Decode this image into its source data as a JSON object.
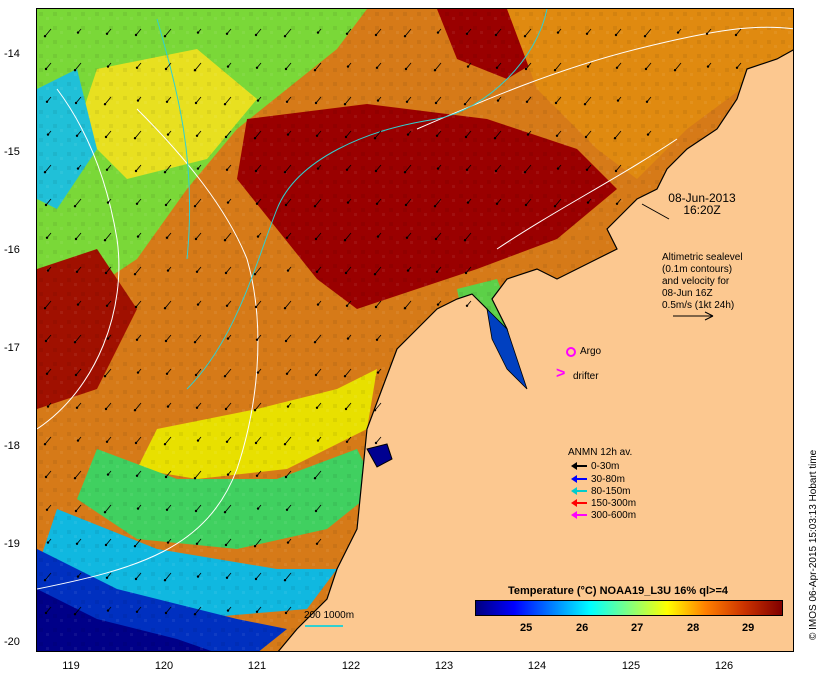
{
  "map": {
    "x_ticks": [
      "119",
      "120",
      "121",
      "122",
      "123",
      "124",
      "125",
      "126"
    ],
    "y_ticks": [
      "-14",
      "-15",
      "-16",
      "-17",
      "-18",
      "-19",
      "-20"
    ],
    "date_label_line1": "08-Jun-2013",
    "date_label_line2": "16:20Z",
    "altimetry_note": [
      "Altimetric sealevel",
      "(0.1m contours)",
      "and velocity for",
      "08-Jun 16Z",
      "0.5m/s (1kt 24h)"
    ],
    "argo_label": "Argo",
    "drifter_label": "drifter",
    "drifter_symbol": ">",
    "scale_label": "200  1000m",
    "credit": "© IMOS 06-Apr-2015 15:03:13 Hobart time"
  },
  "legend": {
    "title": "ANMN 12h av.",
    "items": [
      {
        "label": "0-30m",
        "color": "#000000"
      },
      {
        "label": "30-80m",
        "color": "#0000ff"
      },
      {
        "label": "80-150m",
        "color": "#00cccc"
      },
      {
        "label": "150-300m",
        "color": "#ff0000"
      },
      {
        "label": "300-600m",
        "color": "#ff00ff"
      }
    ]
  },
  "colorbar": {
    "title": "Temperature (°C) NOAA19_L3U 16% ql>=4",
    "ticks": [
      "25",
      "26",
      "27",
      "28",
      "29"
    ],
    "colors": [
      "#00007f",
      "#0000ff",
      "#0080ff",
      "#00ffff",
      "#80ff80",
      "#ffff00",
      "#ff8000",
      "#cc3300",
      "#800000"
    ]
  },
  "colors": {
    "land": "#fcc890",
    "warm": "#9a0000",
    "orange": "#d97a10",
    "yellow": "#e8e400",
    "green": "#50e050",
    "cyan": "#10c8e8",
    "blue": "#1030d0",
    "navy": "#000090"
  }
}
